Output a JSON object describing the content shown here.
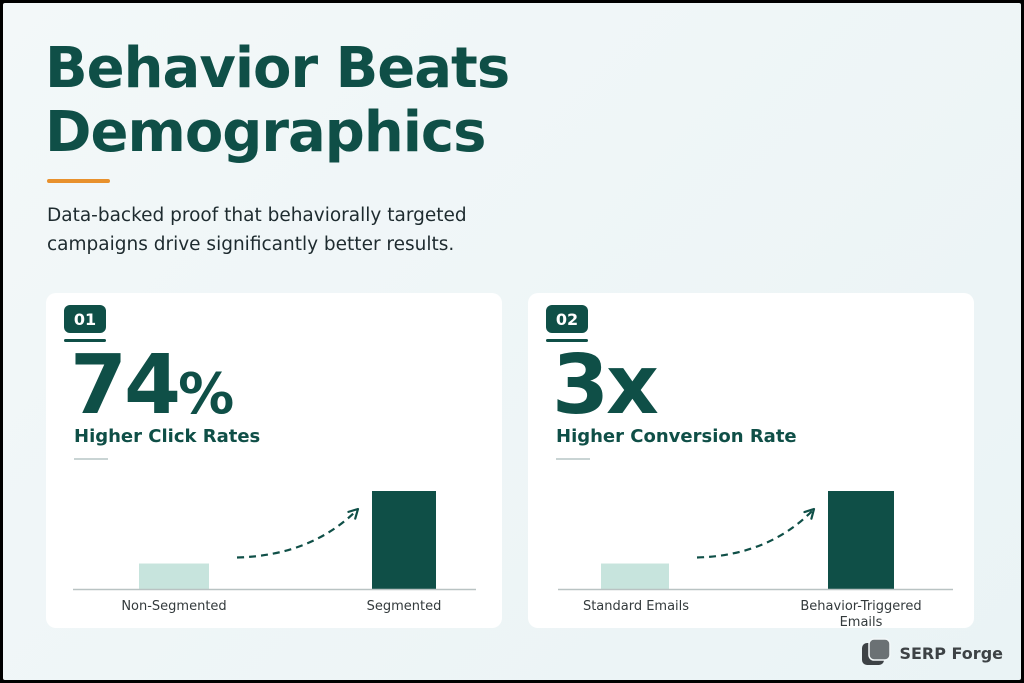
{
  "title": {
    "line1": "Behavior Beats",
    "line2": "Demographics"
  },
  "subtitle": "Data-backed proof that behaviorally targeted campaigns drive significantly better results.",
  "colors": {
    "primary": "#0f4f47",
    "light_bar": "#c7e4dd",
    "accent": "#e8912d"
  },
  "cards": [
    {
      "badge": "01",
      "stat_value": "74",
      "stat_unit": "%",
      "stat_label": "Higher Click Rates"
    },
    {
      "badge": "02",
      "stat_value": "3x",
      "stat_unit": "",
      "stat_label": "Higher Conversion Rate"
    }
  ],
  "chart_data": [
    {
      "type": "bar",
      "categories": [
        "Non-Segmented",
        "Segmented"
      ],
      "values": [
        26,
        100
      ],
      "ylim": [
        0,
        100
      ],
      "grid": false,
      "annotation": "dashed arrow from lower bar to higher bar"
    },
    {
      "type": "bar",
      "categories": [
        "Standard Emails",
        "Behavior-Triggered Emails"
      ],
      "values": [
        26,
        100
      ],
      "ylim": [
        0,
        100
      ],
      "grid": false,
      "annotation": "dashed arrow from lower bar to higher bar"
    }
  ],
  "logo": {
    "text": "SERP Forge",
    "icon": "serp-forge-logo-icon"
  }
}
